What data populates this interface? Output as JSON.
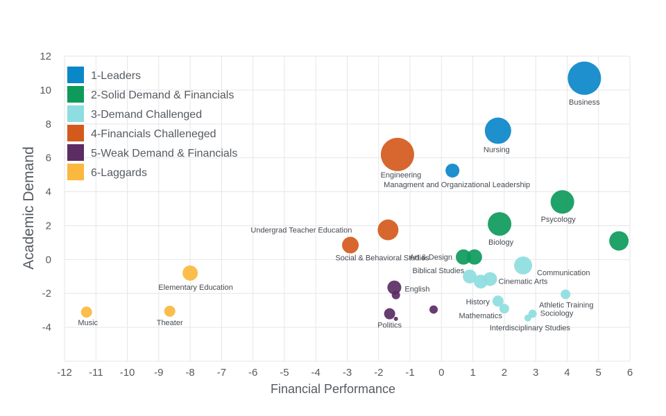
{
  "chart_data": {
    "type": "scatter",
    "title": "",
    "xlabel": "Financial Performance",
    "ylabel": "Academic Demand",
    "xlim": [
      -12,
      6
    ],
    "ylim": [
      -6,
      12
    ],
    "x_ticks": [
      "-12",
      "-11",
      "-10",
      "-9",
      "-8",
      "-7",
      "-6",
      "-5",
      "-4",
      "-3",
      "-2",
      "-1",
      "0",
      "1",
      "2",
      "3",
      "4",
      "5",
      "6"
    ],
    "y_ticks": [
      "-4",
      "-2",
      "0",
      "2",
      "4",
      "6",
      "8",
      "10",
      "12"
    ],
    "grid": true,
    "legend_position": "top-left",
    "series": [
      {
        "name": "1-Leaders",
        "color": "#0a87c9",
        "points": [
          {
            "x": 4.55,
            "y": 10.7,
            "size": 24,
            "label": "Business"
          },
          {
            "x": 1.8,
            "y": 7.6,
            "size": 19,
            "label": "Nursing"
          },
          {
            "x": 0.35,
            "y": 5.25,
            "size": 10,
            "label": "Managment and Organizational Leadership"
          }
        ]
      },
      {
        "name": "2-Solid Demand & Financials",
        "color": "#0d9a5b",
        "points": [
          {
            "x": 3.85,
            "y": 3.4,
            "size": 17,
            "label": "Psycology"
          },
          {
            "x": 1.85,
            "y": 2.1,
            "size": 17,
            "label": "Biology"
          },
          {
            "x": 5.65,
            "y": 1.1,
            "size": 14,
            "label": ""
          },
          {
            "x": 0.7,
            "y": 0.15,
            "size": 11,
            "label": "Art & Design"
          },
          {
            "x": 1.05,
            "y": 0.15,
            "size": 11,
            "label": ""
          }
        ]
      },
      {
        "name": "3-Demand Challenged",
        "color": "#8edde0",
        "points": [
          {
            "x": 2.6,
            "y": -0.35,
            "size": 13,
            "label": "Communication"
          },
          {
            "x": 0.9,
            "y": -1.0,
            "size": 10,
            "label": "Biblical Studies"
          },
          {
            "x": 1.25,
            "y": -1.3,
            "size": 10,
            "label": ""
          },
          {
            "x": 1.55,
            "y": -1.15,
            "size": 10,
            "label": "Cinematic Arts"
          },
          {
            "x": 1.8,
            "y": -2.45,
            "size": 8,
            "label": "History"
          },
          {
            "x": 2.0,
            "y": -2.9,
            "size": 7,
            "label": "Mathematics"
          },
          {
            "x": 3.95,
            "y": -2.05,
            "size": 7,
            "label": "Athletic Training"
          },
          {
            "x": 2.9,
            "y": -3.2,
            "size": 6,
            "label": "Sociology"
          },
          {
            "x": 2.75,
            "y": -3.45,
            "size": 5,
            "label": "Interdisciplinary Studies"
          }
        ]
      },
      {
        "name": "4-Financials Challeneged",
        "color": "#d45a1c",
        "points": [
          {
            "x": -1.4,
            "y": 6.2,
            "size": 24,
            "label": "Engineering"
          },
          {
            "x": -1.7,
            "y": 1.75,
            "size": 15,
            "label": "Undergrad Teacher Education"
          },
          {
            "x": -2.9,
            "y": 0.85,
            "size": 12,
            "label": "Social & Behavioral Studies"
          }
        ]
      },
      {
        "name": "5-Weak Demand & Financials",
        "color": "#5b2d63",
        "points": [
          {
            "x": -1.5,
            "y": -1.65,
            "size": 10,
            "label": "English"
          },
          {
            "x": -1.45,
            "y": -2.1,
            "size": 6,
            "label": ""
          },
          {
            "x": -1.65,
            "y": -3.2,
            "size": 8,
            "label": "Politics"
          },
          {
            "x": -1.45,
            "y": -3.5,
            "size": 3,
            "label": ""
          },
          {
            "x": -0.25,
            "y": -2.95,
            "size": 6,
            "label": ""
          }
        ]
      },
      {
        "name": "6-Laggards",
        "color": "#fbb83e",
        "points": [
          {
            "x": -8.0,
            "y": -0.8,
            "size": 11,
            "label": "Elementary Education"
          },
          {
            "x": -11.3,
            "y": -3.1,
            "size": 8,
            "label": "Music"
          },
          {
            "x": -8.65,
            "y": -3.05,
            "size": 8,
            "label": "Theater"
          }
        ]
      }
    ]
  }
}
